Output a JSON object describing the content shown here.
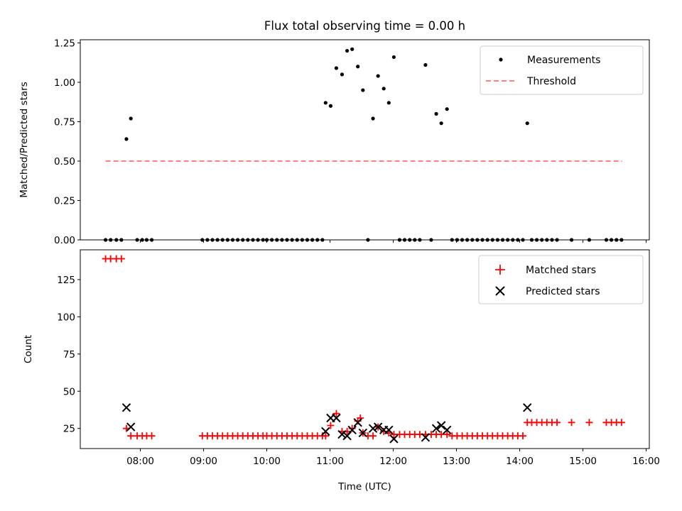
{
  "chart_data": [
    {
      "type": "scatter",
      "title": "Flux total observing time = 0.00 h",
      "xlabel": "",
      "ylabel": "Matched/Predicted stars",
      "ylim": [
        0,
        1.27
      ],
      "yticks": [
        0,
        0.25,
        0.5,
        0.75,
        1.0,
        1.25
      ],
      "ytick_labels": [
        "0.00",
        "0.25",
        "0.50",
        "0.75",
        "1.00",
        "1.25"
      ],
      "xlim": [
        7.05,
        16.05
      ],
      "xticks": [
        8,
        9,
        10,
        11,
        12,
        13,
        14,
        15,
        16
      ],
      "xtick_labels": [],
      "legend": {
        "position": "top-right",
        "entries": [
          {
            "label": "Measurements",
            "marker": "dot",
            "color": "#000000"
          },
          {
            "label": "Threshold",
            "marker": "dashed-line",
            "color": "#ff8080"
          }
        ]
      },
      "series": [
        {
          "name": "Measurements",
          "color": "#000000",
          "points": [
            [
              7.45,
              0
            ],
            [
              7.53,
              0
            ],
            [
              7.62,
              0
            ],
            [
              7.7,
              0
            ],
            [
              7.78,
              0.64
            ],
            [
              7.85,
              0.77
            ],
            [
              7.95,
              0
            ],
            [
              8.03,
              0
            ],
            [
              8.1,
              0
            ],
            [
              8.18,
              0
            ],
            [
              8.98,
              0
            ],
            [
              9.06,
              0
            ],
            [
              9.14,
              0
            ],
            [
              9.22,
              0
            ],
            [
              9.3,
              0
            ],
            [
              9.38,
              0
            ],
            [
              9.46,
              0
            ],
            [
              9.54,
              0
            ],
            [
              9.62,
              0
            ],
            [
              9.7,
              0
            ],
            [
              9.78,
              0
            ],
            [
              9.86,
              0
            ],
            [
              9.94,
              0
            ],
            [
              10.0,
              0
            ],
            [
              10.08,
              0
            ],
            [
              10.16,
              0
            ],
            [
              10.24,
              0
            ],
            [
              10.32,
              0
            ],
            [
              10.4,
              0
            ],
            [
              10.48,
              0
            ],
            [
              10.56,
              0
            ],
            [
              10.64,
              0
            ],
            [
              10.72,
              0
            ],
            [
              10.8,
              0
            ],
            [
              10.88,
              0
            ],
            [
              10.93,
              0.87
            ],
            [
              11.01,
              0.85
            ],
            [
              11.1,
              1.09
            ],
            [
              11.19,
              1.05
            ],
            [
              11.27,
              1.2
            ],
            [
              11.35,
              1.21
            ],
            [
              11.44,
              1.1
            ],
            [
              11.52,
              0.95
            ],
            [
              11.6,
              0
            ],
            [
              11.68,
              0.77
            ],
            [
              11.76,
              1.04
            ],
            [
              11.85,
              0.96
            ],
            [
              11.93,
              0.87
            ],
            [
              12.01,
              1.16
            ],
            [
              12.1,
              0
            ],
            [
              12.18,
              0
            ],
            [
              12.26,
              0
            ],
            [
              12.34,
              0
            ],
            [
              12.42,
              0
            ],
            [
              12.51,
              1.11
            ],
            [
              12.6,
              0
            ],
            [
              12.68,
              0.8
            ],
            [
              12.76,
              0.74
            ],
            [
              12.85,
              0.83
            ],
            [
              12.93,
              0
            ],
            [
              13.01,
              0
            ],
            [
              13.09,
              0
            ],
            [
              13.17,
              0
            ],
            [
              13.25,
              0
            ],
            [
              13.33,
              0
            ],
            [
              13.41,
              0
            ],
            [
              13.49,
              0
            ],
            [
              13.57,
              0
            ],
            [
              13.65,
              0
            ],
            [
              13.73,
              0
            ],
            [
              13.81,
              0
            ],
            [
              13.89,
              0
            ],
            [
              13.97,
              0
            ],
            [
              14.05,
              0
            ],
            [
              14.12,
              0.74
            ],
            [
              14.19,
              0
            ],
            [
              14.27,
              0
            ],
            [
              14.35,
              0
            ],
            [
              14.43,
              0
            ],
            [
              14.51,
              0
            ],
            [
              14.59,
              0
            ],
            [
              14.82,
              0
            ],
            [
              15.1,
              0
            ],
            [
              15.37,
              0
            ],
            [
              15.45,
              0
            ],
            [
              15.53,
              0
            ],
            [
              15.61,
              0
            ]
          ]
        },
        {
          "name": "Threshold",
          "color": "#ff8080",
          "style": "dashed",
          "points": [
            [
              7.45,
              0.5
            ],
            [
              15.62,
              0.5
            ]
          ]
        }
      ]
    },
    {
      "type": "scatter",
      "title": "",
      "xlabel": "Time (UTC)",
      "ylabel": "Count",
      "ylim": [
        11.5,
        145
      ],
      "yticks": [
        25,
        50,
        75,
        100,
        125
      ],
      "ytick_labels": [
        "25",
        "50",
        "75",
        "100",
        "125"
      ],
      "xlim": [
        7.05,
        16.05
      ],
      "xticks": [
        8,
        9,
        10,
        11,
        12,
        13,
        14,
        15,
        16
      ],
      "xtick_labels": [
        "08:00",
        "09:00",
        "10:00",
        "11:00",
        "12:00",
        "13:00",
        "14:00",
        "15:00",
        "16:00"
      ],
      "legend": {
        "position": "top-right",
        "entries": [
          {
            "label": "Matched stars",
            "marker": "plus",
            "color": "#ff0000"
          },
          {
            "label": "Predicted stars",
            "marker": "x",
            "color": "#000000"
          }
        ]
      },
      "series": [
        {
          "name": "Matched stars",
          "marker": "plus",
          "color": "#ff0000",
          "points": [
            [
              7.45,
              139
            ],
            [
              7.53,
              139
            ],
            [
              7.62,
              139
            ],
            [
              7.7,
              139
            ],
            [
              7.78,
              25
            ],
            [
              7.85,
              20
            ],
            [
              7.95,
              20
            ],
            [
              8.03,
              20
            ],
            [
              8.1,
              20
            ],
            [
              8.18,
              20
            ],
            [
              8.98,
              20
            ],
            [
              9.06,
              20
            ],
            [
              9.14,
              20
            ],
            [
              9.22,
              20
            ],
            [
              9.3,
              20
            ],
            [
              9.38,
              20
            ],
            [
              9.46,
              20
            ],
            [
              9.54,
              20
            ],
            [
              9.62,
              20
            ],
            [
              9.7,
              20
            ],
            [
              9.78,
              20
            ],
            [
              9.86,
              20
            ],
            [
              9.94,
              20
            ],
            [
              10.0,
              20
            ],
            [
              10.08,
              20
            ],
            [
              10.16,
              20
            ],
            [
              10.24,
              20
            ],
            [
              10.32,
              20
            ],
            [
              10.4,
              20
            ],
            [
              10.48,
              20
            ],
            [
              10.56,
              20
            ],
            [
              10.64,
              20
            ],
            [
              10.72,
              20
            ],
            [
              10.8,
              20
            ],
            [
              10.88,
              20
            ],
            [
              10.93,
              20
            ],
            [
              11.01,
              27
            ],
            [
              11.1,
              35
            ],
            [
              11.19,
              23
            ],
            [
              11.27,
              23
            ],
            [
              11.35,
              25
            ],
            [
              11.44,
              30
            ],
            [
              11.48,
              32
            ],
            [
              11.52,
              22
            ],
            [
              11.6,
              20
            ],
            [
              11.68,
              20
            ],
            [
              11.76,
              26
            ],
            [
              11.85,
              23
            ],
            [
              11.93,
              22
            ],
            [
              12.01,
              21
            ],
            [
              12.1,
              21
            ],
            [
              12.18,
              21
            ],
            [
              12.26,
              21
            ],
            [
              12.34,
              21
            ],
            [
              12.42,
              21
            ],
            [
              12.51,
              21
            ],
            [
              12.6,
              21
            ],
            [
              12.68,
              21
            ],
            [
              12.76,
              21
            ],
            [
              12.85,
              21
            ],
            [
              12.93,
              20
            ],
            [
              13.01,
              20
            ],
            [
              13.09,
              20
            ],
            [
              13.17,
              20
            ],
            [
              13.25,
              20
            ],
            [
              13.33,
              20
            ],
            [
              13.41,
              20
            ],
            [
              13.49,
              20
            ],
            [
              13.57,
              20
            ],
            [
              13.65,
              20
            ],
            [
              13.73,
              20
            ],
            [
              13.81,
              20
            ],
            [
              13.89,
              20
            ],
            [
              13.97,
              20
            ],
            [
              14.05,
              20
            ],
            [
              14.12,
              29
            ],
            [
              14.19,
              29
            ],
            [
              14.27,
              29
            ],
            [
              14.35,
              29
            ],
            [
              14.43,
              29
            ],
            [
              14.51,
              29
            ],
            [
              14.59,
              29
            ],
            [
              14.82,
              29
            ],
            [
              15.1,
              29
            ],
            [
              15.37,
              29
            ],
            [
              15.45,
              29
            ],
            [
              15.53,
              29
            ],
            [
              15.61,
              29
            ]
          ]
        },
        {
          "name": "Predicted stars",
          "marker": "x",
          "color": "#000000",
          "points": [
            [
              7.78,
              39
            ],
            [
              7.85,
              26
            ],
            [
              10.93,
              23
            ],
            [
              11.01,
              32
            ],
            [
              11.1,
              32
            ],
            [
              11.19,
              21
            ],
            [
              11.27,
              20
            ],
            [
              11.35,
              24
            ],
            [
              11.44,
              29
            ],
            [
              11.52,
              22
            ],
            [
              11.68,
              25
            ],
            [
              11.76,
              26
            ],
            [
              11.85,
              24
            ],
            [
              11.93,
              24
            ],
            [
              12.01,
              18
            ],
            [
              12.51,
              19
            ],
            [
              12.68,
              25
            ],
            [
              12.76,
              27
            ],
            [
              12.85,
              24
            ],
            [
              14.12,
              39
            ]
          ]
        }
      ]
    }
  ]
}
